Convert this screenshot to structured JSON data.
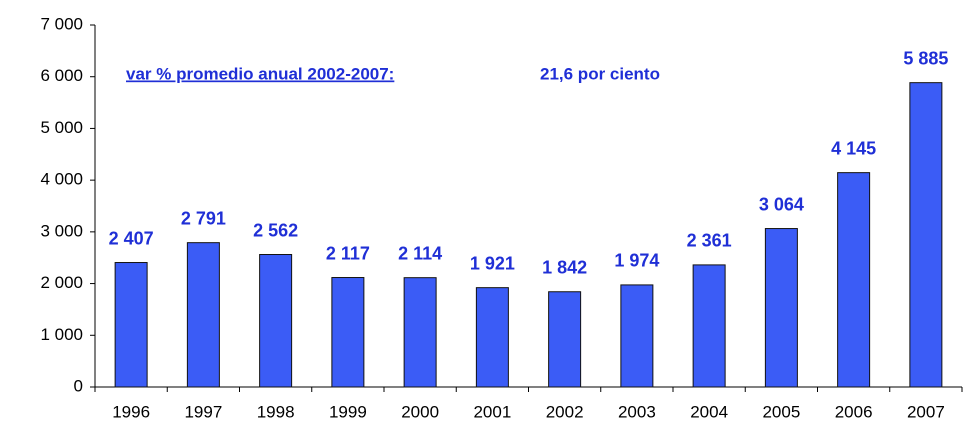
{
  "chart_data": {
    "type": "bar",
    "annotations": [
      "var % promedio anual 2002-2007:",
      "21,6 por ciento"
    ],
    "categories": [
      "1996",
      "1997",
      "1998",
      "1999",
      "2000",
      "2001",
      "2002",
      "2003",
      "2004",
      "2005",
      "2006",
      "2007"
    ],
    "values": [
      2407,
      2791,
      2562,
      2117,
      2114,
      1921,
      1842,
      1974,
      2361,
      3064,
      4145,
      5885
    ],
    "value_labels": [
      "2 407",
      "2 791",
      "2 562",
      "2 117",
      "2 114",
      "1 921",
      "1 842",
      "1 974",
      "2 361",
      "3 064",
      "4 145",
      "5 885"
    ],
    "color": "#3b5cf6",
    "ylim": [
      0,
      7000
    ],
    "yticks": [
      {
        "value": 0,
        "label": "0"
      },
      {
        "value": 1000,
        "label": "1 000"
      },
      {
        "value": 2000,
        "label": "2 000"
      },
      {
        "value": 3000,
        "label": "3 000"
      },
      {
        "value": 4000,
        "label": "4 000"
      },
      {
        "value": 5000,
        "label": "5 000"
      },
      {
        "value": 6000,
        "label": "6 000"
      },
      {
        "value": 7000,
        "label": "7 000"
      }
    ],
    "grid": false
  }
}
